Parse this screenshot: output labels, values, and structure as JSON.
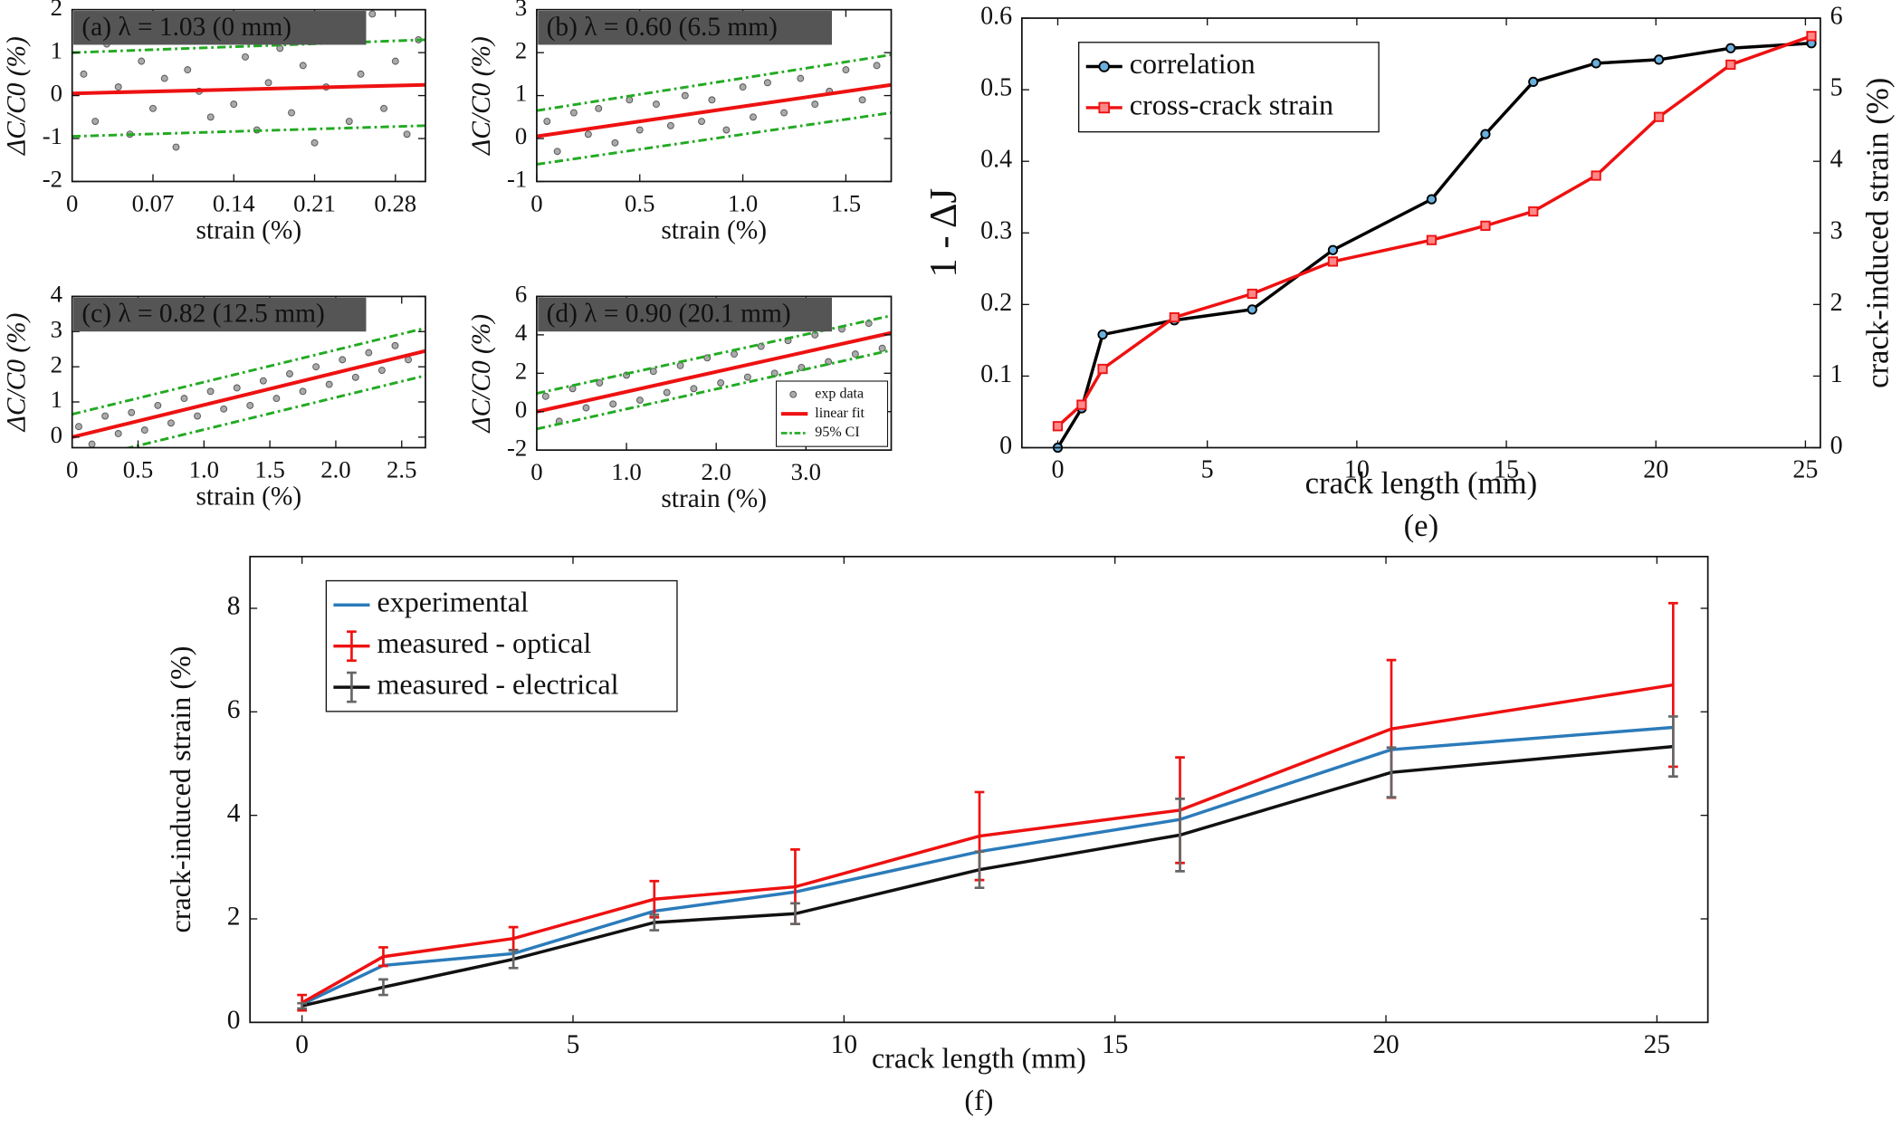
{
  "chart_data": [
    {
      "type": "scatter",
      "panel_label": "(a) λ = 1.03 (0 mm)",
      "xlabel": "strain (%)",
      "ylabel": "ΔC/C0 (%)",
      "xlim": [
        0,
        0.306
      ],
      "ylim": [
        -2,
        2
      ],
      "xticks": [
        0,
        0.07,
        0.14,
        0.21,
        0.28
      ],
      "yticks": [
        -2,
        -1,
        0,
        1,
        2
      ],
      "series": [
        {
          "style": "points",
          "color": "#aaaaaa",
          "x": [
            0.01,
            0.02,
            0.03,
            0.04,
            0.05,
            0.06,
            0.07,
            0.08,
            0.09,
            0.1,
            0.11,
            0.12,
            0.13,
            0.14,
            0.15,
            0.16,
            0.17,
            0.18,
            0.19,
            0.2,
            0.21,
            0.22,
            0.23,
            0.24,
            0.25,
            0.26,
            0.27,
            0.28,
            0.29,
            0.3
          ],
          "values": [
            0.5,
            -0.6,
            1.2,
            0.2,
            -0.9,
            0.8,
            -0.3,
            0.4,
            -1.2,
            0.6,
            0.1,
            -0.5,
            1.4,
            -0.2,
            0.9,
            -0.8,
            0.3,
            1.1,
            -0.4,
            0.7,
            -1.1,
            0.2,
            1.5,
            -0.6,
            0.5,
            1.9,
            -0.3,
            0.8,
            -0.9,
            1.3
          ]
        },
        {
          "style": "line",
          "color": "#ee1111",
          "x": [
            0,
            0.306
          ],
          "values": [
            0.05,
            0.25
          ]
        },
        {
          "style": "dash",
          "color": "#22aa22",
          "x": [
            0,
            0.306
          ],
          "values": [
            1.0,
            1.3
          ]
        },
        {
          "style": "dash",
          "color": "#22aa22",
          "x": [
            0,
            0.306
          ],
          "values": [
            -0.95,
            -0.7
          ]
        }
      ]
    },
    {
      "type": "scatter",
      "panel_label": "(b) λ = 0.60 (6.5 mm)",
      "xlabel": "strain (%)",
      "ylabel": "ΔC/C0 (%)",
      "xlim": [
        0,
        1.72
      ],
      "ylim": [
        -1,
        3
      ],
      "xticks": [
        0,
        0.5,
        {
          "value": 1,
          "label": "1.0"
        },
        1.5
      ],
      "yticks": [
        -1,
        0,
        1,
        2,
        3
      ],
      "series": [
        {
          "style": "points",
          "color": "#aaaaaa",
          "x": [
            0.05,
            0.1,
            0.18,
            0.25,
            0.3,
            0.38,
            0.45,
            0.5,
            0.58,
            0.65,
            0.72,
            0.8,
            0.85,
            0.92,
            1.0,
            1.05,
            1.12,
            1.2,
            1.28,
            1.35,
            1.42,
            1.5,
            1.58,
            1.65
          ],
          "values": [
            0.4,
            -0.3,
            0.6,
            0.1,
            0.7,
            -0.1,
            0.9,
            0.2,
            0.8,
            0.3,
            1.0,
            0.4,
            0.9,
            0.2,
            1.2,
            0.5,
            1.3,
            0.6,
            1.4,
            0.8,
            1.1,
            1.6,
            0.9,
            1.7
          ]
        },
        {
          "style": "line",
          "color": "#ee1111",
          "x": [
            0,
            1.72
          ],
          "values": [
            0.05,
            1.25
          ]
        },
        {
          "style": "dash",
          "color": "#22aa22",
          "x": [
            0,
            1.72
          ],
          "values": [
            0.65,
            1.95
          ]
        },
        {
          "style": "dash",
          "color": "#22aa22",
          "x": [
            0,
            1.72
          ],
          "values": [
            -0.6,
            0.6
          ]
        }
      ]
    },
    {
      "type": "scatter",
      "panel_label": "(c) λ = 0.82 (12.5 mm)",
      "xlabel": "strain (%)",
      "ylabel": "ΔC/C0 (%)",
      "xlim": [
        0,
        2.68
      ],
      "ylim": [
        -0.3,
        4
      ],
      "xticks": [
        0,
        0.5,
        {
          "value": 1,
          "label": "1.0"
        },
        1.5,
        {
          "value": 2,
          "label": "2.0"
        },
        2.5
      ],
      "yticks": [
        0,
        1,
        2,
        3,
        4
      ],
      "series": [
        {
          "style": "points",
          "color": "#aaaaaa",
          "x": [
            0.05,
            0.15,
            0.25,
            0.35,
            0.45,
            0.55,
            0.65,
            0.75,
            0.85,
            0.95,
            1.05,
            1.15,
            1.25,
            1.35,
            1.45,
            1.55,
            1.65,
            1.75,
            1.85,
            1.95,
            2.05,
            2.15,
            2.25,
            2.35,
            2.45,
            2.55
          ],
          "values": [
            0.3,
            -0.2,
            0.6,
            0.1,
            0.7,
            0.2,
            0.9,
            0.4,
            1.1,
            0.6,
            1.3,
            0.8,
            1.4,
            0.9,
            1.6,
            1.1,
            1.8,
            1.3,
            2.0,
            1.5,
            2.2,
            1.7,
            2.4,
            1.9,
            2.6,
            2.2
          ]
        },
        {
          "style": "line",
          "color": "#ee1111",
          "x": [
            0,
            2.68
          ],
          "values": [
            0,
            2.45
          ]
        },
        {
          "style": "dash",
          "color": "#22aa22",
          "x": [
            0,
            2.68
          ],
          "values": [
            0.65,
            3.1
          ]
        },
        {
          "style": "dash",
          "color": "#22aa22",
          "x": [
            0,
            2.68
          ],
          "values": [
            -0.7,
            1.75
          ]
        }
      ]
    },
    {
      "type": "scatter",
      "panel_label": "(d) λ = 0.90 (20.1 mm)",
      "xlabel": "strain (%)",
      "ylabel": "ΔC/C0 (%)",
      "xlim": [
        0,
        3.95
      ],
      "ylim": [
        -2,
        6
      ],
      "xticks": [
        0,
        {
          "value": 1,
          "label": "1.0"
        },
        {
          "value": 2,
          "label": "2.0"
        },
        {
          "value": 3,
          "label": "3.0"
        }
      ],
      "yticks": [
        -2,
        0,
        2,
        4,
        6
      ],
      "legend": "lower right",
      "series": [
        {
          "name": "exp data",
          "style": "points",
          "color": "#aaaaaa",
          "x": [
            0.1,
            0.25,
            0.4,
            0.55,
            0.7,
            0.85,
            1.0,
            1.15,
            1.3,
            1.45,
            1.6,
            1.75,
            1.9,
            2.05,
            2.2,
            2.35,
            2.5,
            2.65,
            2.8,
            2.95,
            3.1,
            3.25,
            3.4,
            3.55,
            3.7,
            3.85
          ],
          "values": [
            0.8,
            -0.5,
            1.2,
            0.2,
            1.5,
            0.4,
            1.9,
            0.6,
            2.1,
            1.0,
            2.4,
            1.2,
            2.8,
            1.5,
            3.0,
            1.8,
            3.4,
            2.0,
            3.7,
            2.3,
            4.0,
            2.6,
            4.3,
            3.0,
            4.6,
            3.3
          ]
        },
        {
          "name": "linear fit",
          "style": "line",
          "color": "#ee1111",
          "x": [
            0,
            3.95
          ],
          "values": [
            0,
            4.1
          ]
        },
        {
          "name": "95% CI",
          "style": "dash",
          "color": "#22aa22",
          "x": [
            0,
            3.95
          ],
          "values": [
            0.95,
            5.0
          ]
        },
        {
          "style": "dash",
          "color": "#22aa22",
          "x": [
            0,
            3.95
          ],
          "values": [
            -0.9,
            3.2
          ]
        }
      ]
    },
    {
      "type": "line",
      "caption": "(e)",
      "xlabel": "crack length (mm)",
      "ylabel": "1 - ΔJ",
      "y2label": "crack-induced strain (%)",
      "xlim": [
        -1.2,
        25.5
      ],
      "ylim": [
        0,
        0.6
      ],
      "y2lim": [
        0,
        6
      ],
      "xticks": [
        0,
        5,
        10,
        15,
        20,
        25
      ],
      "yticks": [
        0,
        0.1,
        0.2,
        0.3,
        0.4,
        0.5,
        0.6
      ],
      "y2ticks": [
        0,
        1,
        2,
        3,
        4,
        5,
        6
      ],
      "legend": "upper left",
      "x": [
        0,
        0.8,
        1.5,
        3.9,
        6.5,
        9.2,
        12.5,
        14.3,
        15.9,
        18,
        20.1,
        22.5,
        25.2
      ],
      "series": [
        {
          "name": "correlation",
          "color": "#000000",
          "marker": "circle",
          "marker_color": "#6ab0de",
          "values": [
            0,
            0.055,
            0.158,
            0.178,
            0.193,
            0.276,
            0.347,
            0.438,
            0.511,
            0.537,
            0.542,
            0.558,
            0.565
          ]
        },
        {
          "name": "cross-crack strain",
          "color": "#ee1111",
          "marker": "square",
          "marker_color": "#ff8888",
          "axis": "y2",
          "values": [
            0.3,
            0.6,
            1.1,
            1.82,
            2.15,
            2.6,
            2.9,
            3.1,
            3.3,
            3.8,
            4.62,
            5.35,
            5.75
          ]
        }
      ]
    },
    {
      "type": "line",
      "caption": "(f)",
      "xlabel": "crack length (mm)",
      "ylabel": "crack-induced strain (%)",
      "xlim": [
        -0.96,
        25.94
      ],
      "ylim": [
        0,
        9
      ],
      "xticks": [
        0,
        5,
        10,
        15,
        20,
        25
      ],
      "yticks": [
        0,
        2,
        4,
        6,
        8
      ],
      "legend": "upper left",
      "x": [
        0,
        1.5,
        3.9,
        6.5,
        9.1,
        12.5,
        16.2,
        20.1,
        25.3
      ],
      "series": [
        {
          "name": "experimental",
          "color": "#2b7bba",
          "values": [
            0.35,
            1.1,
            1.33,
            2.15,
            2.52,
            3.3,
            3.92,
            5.27,
            5.7
          ]
        },
        {
          "name": "measured - optical",
          "color": "#ee1111",
          "error_color": "#ee1111",
          "values": [
            0.38,
            1.27,
            1.62,
            2.38,
            2.62,
            3.6,
            4.1,
            5.67,
            6.52
          ],
          "errors": [
            0.15,
            0.18,
            0.22,
            0.35,
            0.72,
            0.85,
            1.02,
            1.33,
            1.58
          ]
        },
        {
          "name": "measured - electrical",
          "color": "#111111",
          "error_color": "#666666",
          "values": [
            0.32,
            0.68,
            1.22,
            1.93,
            2.1,
            2.95,
            3.62,
            4.83,
            5.33
          ],
          "errors": [
            0.05,
            0.15,
            0.17,
            0.15,
            0.2,
            0.35,
            0.7,
            0.48,
            0.58
          ]
        }
      ]
    }
  ]
}
